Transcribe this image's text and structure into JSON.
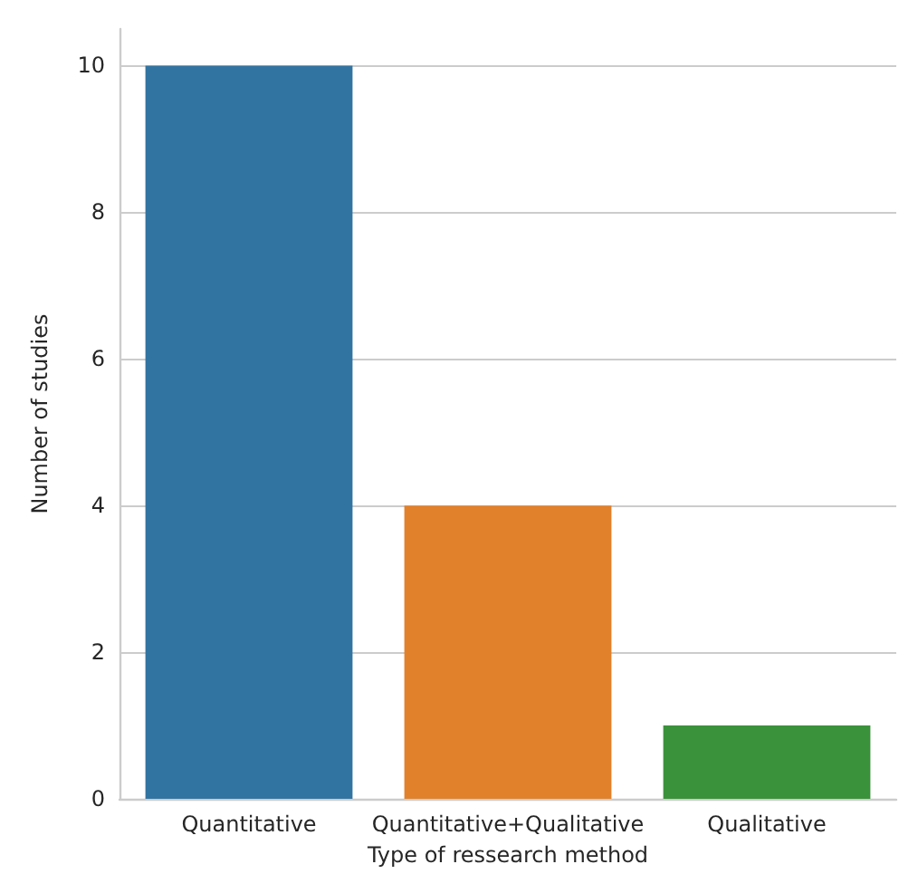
{
  "chart_data": {
    "type": "bar",
    "xlabel": "Type of ressearch method",
    "ylabel": "Number of studies",
    "categories": [
      "Quantitative",
      "Quantitative+Qualitative",
      "Qualitative"
    ],
    "values": [
      10,
      4,
      1
    ],
    "colors": [
      "#3274a1",
      "#e1812c",
      "#3a923a"
    ],
    "ylim": [
      0,
      10.5
    ],
    "yticks": [
      0,
      2,
      4,
      6,
      8,
      10
    ],
    "grid": "y"
  }
}
